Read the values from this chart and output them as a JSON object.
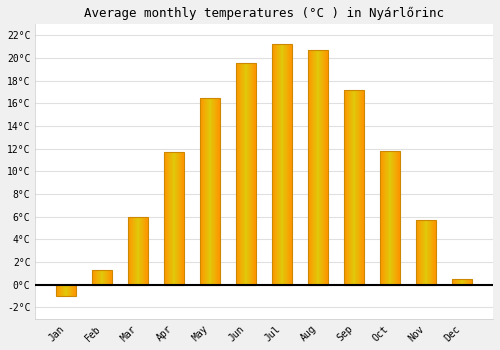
{
  "title": "Average monthly temperatures (°C ) in Nyárlőrinc",
  "months": [
    "Jan",
    "Feb",
    "Mar",
    "Apr",
    "May",
    "Jun",
    "Jul",
    "Aug",
    "Sep",
    "Oct",
    "Nov",
    "Dec"
  ],
  "values": [
    -1.0,
    1.3,
    6.0,
    11.7,
    16.5,
    19.6,
    21.2,
    20.7,
    17.2,
    11.8,
    5.7,
    0.5
  ],
  "bar_color": "#FFAA00",
  "bar_edge_color": "#CC8800",
  "background_color": "#f0f0f0",
  "plot_bg_color": "#ffffff",
  "grid_color": "#e0e0e0",
  "ylim": [
    -3,
    23
  ],
  "yticks": [
    -2,
    0,
    2,
    4,
    6,
    8,
    10,
    12,
    14,
    16,
    18,
    20,
    22
  ],
  "ytick_labels": [
    "-2°C",
    "0°C",
    "2°C",
    "4°C",
    "6°C",
    "8°C",
    "10°C",
    "12°C",
    "14°C",
    "16°C",
    "18°C",
    "20°C",
    "22°C"
  ],
  "title_fontsize": 9,
  "tick_fontsize": 7,
  "font_family": "monospace",
  "bar_width": 0.55
}
